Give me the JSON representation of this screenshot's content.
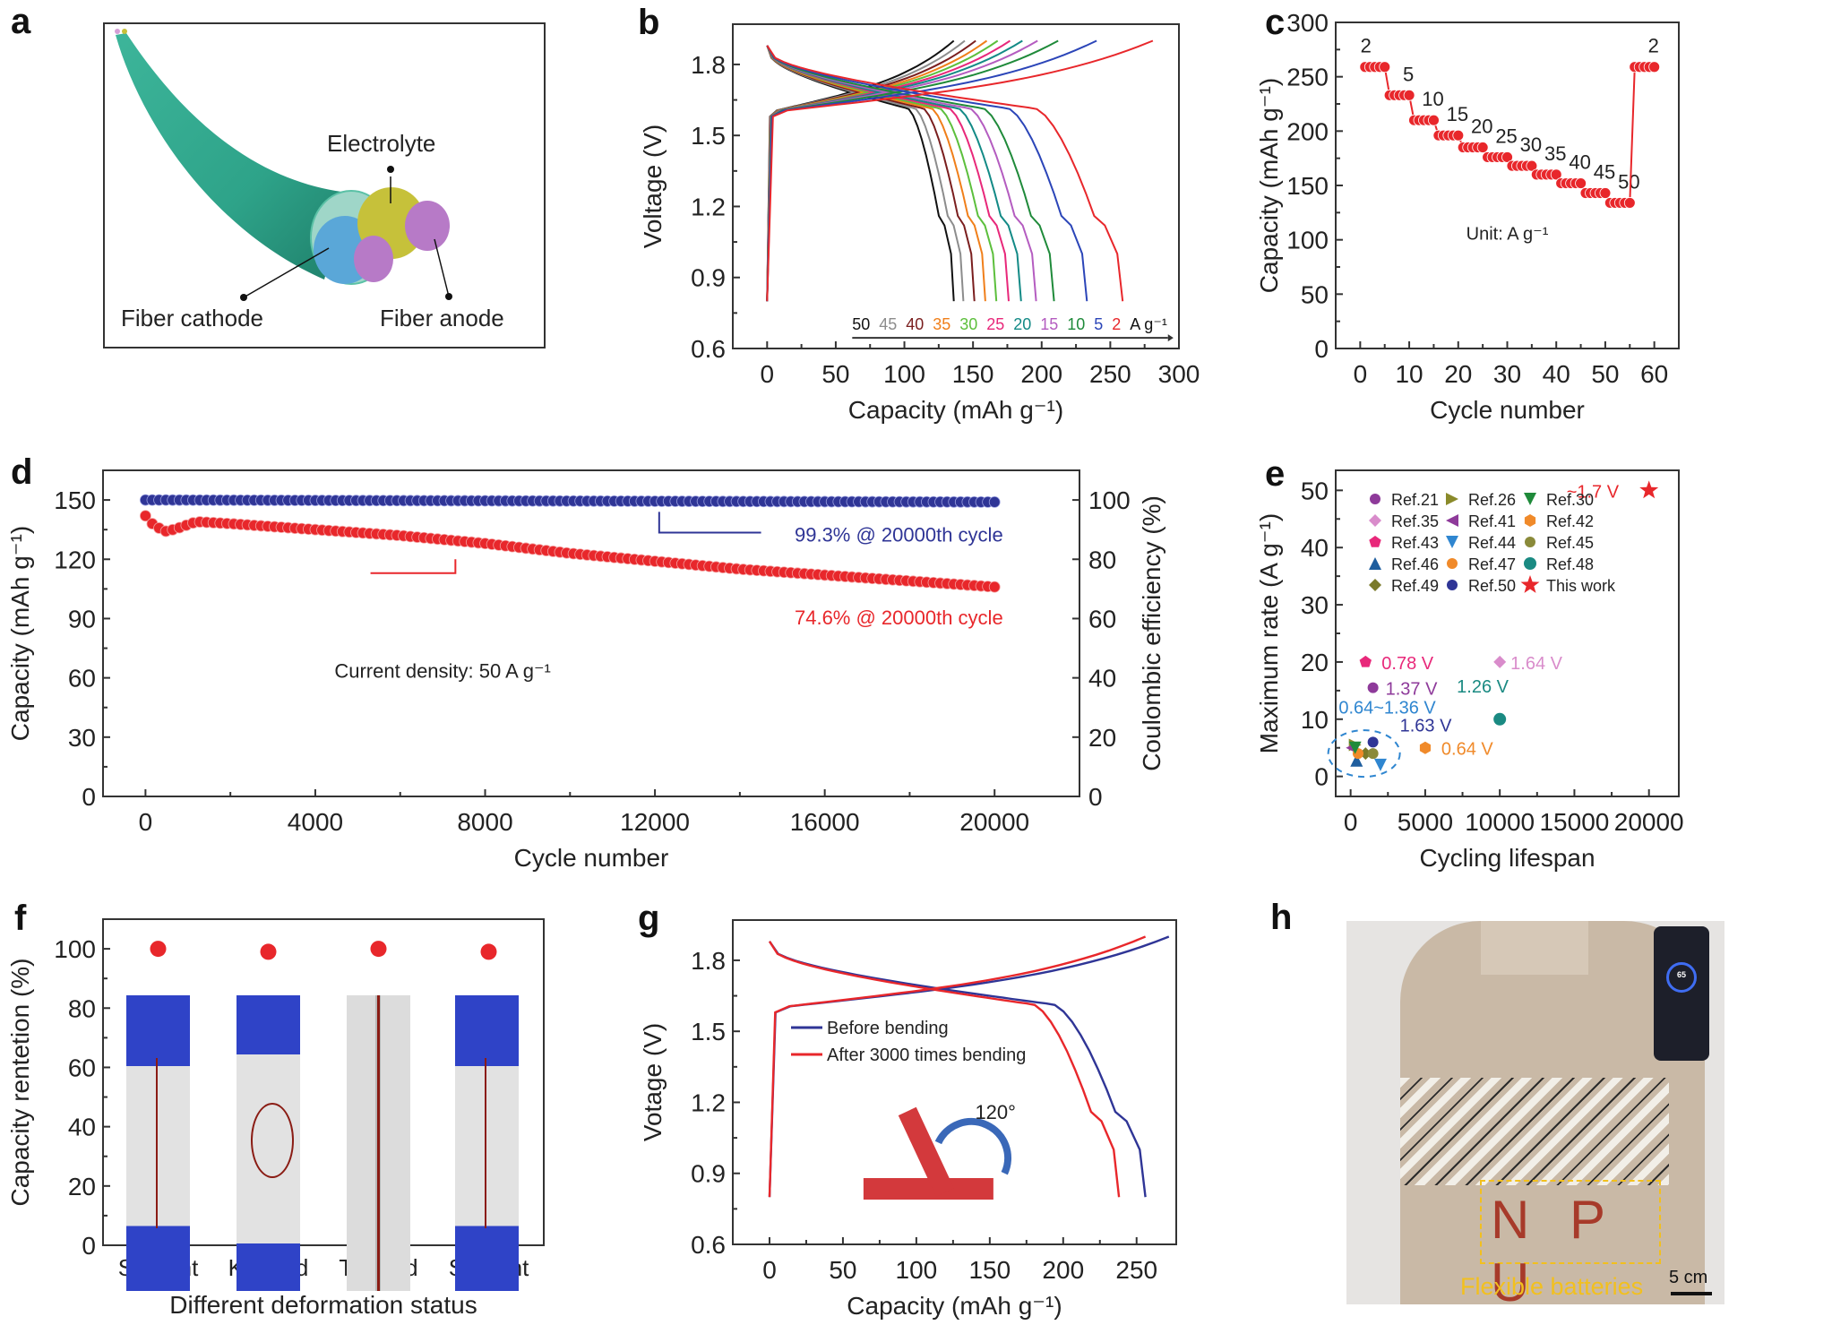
{
  "panels": {
    "a": {
      "letter": "a",
      "labels": {
        "electrolyte": "Electrolyte",
        "cathode": "Fiber cathode",
        "anode": "Fiber anode"
      }
    },
    "h": {
      "letter": "h",
      "labels": {
        "flexible": "Flexible batteries",
        "scale": "5 cm",
        "letters": "N P U",
        "phone_readout": "65"
      }
    }
  },
  "chart_data": [
    {
      "id": "b",
      "letter": "b",
      "type": "line",
      "title": "",
      "xlabel": "Capacity (mAh g⁻¹)",
      "ylabel": "Voltage (V)",
      "xlim": [
        -25,
        300
      ],
      "ylim": [
        0.6,
        1.97
      ],
      "xticks": [
        0,
        50,
        100,
        150,
        200,
        250,
        300
      ],
      "yticks": [
        0.6,
        0.9,
        1.2,
        1.5,
        1.8
      ],
      "annotation_unit": "A g⁻¹",
      "series": [
        {
          "name": "50",
          "color": "#111111",
          "discharge_capacity": 136,
          "charge_capacity": 136
        },
        {
          "name": "45",
          "color": "#8c8c8c",
          "discharge_capacity": 143,
          "charge_capacity": 144
        },
        {
          "name": "40",
          "color": "#7a1e1e",
          "discharge_capacity": 151,
          "charge_capacity": 152
        },
        {
          "name": "35",
          "color": "#f07f1a",
          "discharge_capacity": 159,
          "charge_capacity": 160
        },
        {
          "name": "30",
          "color": "#5cbf3c",
          "discharge_capacity": 167,
          "charge_capacity": 168
        },
        {
          "name": "25",
          "color": "#e8287a",
          "discharge_capacity": 176,
          "charge_capacity": 177
        },
        {
          "name": "20",
          "color": "#138a86",
          "discharge_capacity": 185,
          "charge_capacity": 186
        },
        {
          "name": "15",
          "color": "#b45cc0",
          "discharge_capacity": 196,
          "charge_capacity": 197
        },
        {
          "name": "10",
          "color": "#1f8a3a",
          "discharge_capacity": 209,
          "charge_capacity": 212
        },
        {
          "name": "5",
          "color": "#2b45b8",
          "discharge_capacity": 233,
          "charge_capacity": 240
        },
        {
          "name": "2",
          "color": "#e8272b",
          "discharge_capacity": 259,
          "charge_capacity": 281
        }
      ]
    },
    {
      "id": "c",
      "letter": "c",
      "type": "scatter",
      "xlabel": "Cycle number",
      "ylabel": "Capacity (mAh g⁻¹)",
      "xlim": [
        -5,
        65
      ],
      "ylim": [
        0,
        300
      ],
      "xticks": [
        0,
        10,
        20,
        30,
        40,
        50,
        60
      ],
      "yticks": [
        0,
        50,
        100,
        150,
        200,
        250,
        300
      ],
      "annotation": "Unit: A g⁻¹",
      "color": "#e8272b",
      "steps": [
        {
          "rate": "2",
          "capacity": 259
        },
        {
          "rate": "5",
          "capacity": 233
        },
        {
          "rate": "10",
          "capacity": 210
        },
        {
          "rate": "15",
          "capacity": 196
        },
        {
          "rate": "20",
          "capacity": 185
        },
        {
          "rate": "25",
          "capacity": 176
        },
        {
          "rate": "30",
          "capacity": 168
        },
        {
          "rate": "35",
          "capacity": 160
        },
        {
          "rate": "40",
          "capacity": 152
        },
        {
          "rate": "45",
          "capacity": 143
        },
        {
          "rate": "50",
          "capacity": 134
        },
        {
          "rate": "2",
          "capacity": 259
        }
      ]
    },
    {
      "id": "d",
      "letter": "d",
      "type": "scatter",
      "xlabel": "Cycle number",
      "ylabel": "Capacity (mAh g⁻¹)",
      "y2label": "Coulombic efficiency (%)",
      "xlim": [
        -1000,
        22000
      ],
      "ylim": [
        0,
        165
      ],
      "y2lim": [
        0,
        110
      ],
      "xticks": [
        0,
        4000,
        8000,
        12000,
        16000,
        20000
      ],
      "yticks": [
        0,
        30,
        60,
        90,
        120,
        150
      ],
      "y2ticks": [
        0,
        20,
        40,
        60,
        80,
        100
      ],
      "annotations": {
        "current": "Current density: 50 A g⁻¹",
        "ce": "99.3% @ 20000th cycle",
        "capacity": "74.6% @ 20000th cycle"
      },
      "series": [
        {
          "name": "Capacity",
          "axis": "left",
          "color": "#e8272b",
          "x": [
            0,
            200,
            500,
            800,
            1200,
            2000,
            4000,
            6000,
            8000,
            10000,
            12000,
            14000,
            16000,
            18000,
            20000
          ],
          "y": [
            142,
            137,
            134,
            136,
            139,
            138,
            135,
            132,
            128,
            123,
            119,
            115,
            112,
            109,
            106
          ]
        },
        {
          "name": "Coulombic efficiency",
          "axis": "right",
          "color": "#2f3596",
          "x": [
            0,
            20000
          ],
          "y": [
            100,
            99.3
          ]
        }
      ]
    },
    {
      "id": "e",
      "letter": "e",
      "type": "scatter",
      "xlabel": "Cycling lifespan",
      "ylabel": "Maximum rate (A g⁻¹)",
      "xlim": [
        -1000,
        22000
      ],
      "ylim": [
        -3.5,
        53.5
      ],
      "xticks": [
        0,
        5000,
        10000,
        15000,
        20000
      ],
      "yticks": [
        0,
        10,
        20,
        30,
        40,
        50
      ],
      "legend_position": "top-left",
      "points": [
        {
          "name": "Ref.21",
          "x": 1500,
          "y": 15.5,
          "color": "#8e3a9a",
          "marker": "sphere",
          "label": "1.37 V"
        },
        {
          "name": "Ref.35",
          "x": 10000,
          "y": 20,
          "color": "#d98ccb",
          "marker": "diamond",
          "label": "1.64 V"
        },
        {
          "name": "Ref.43",
          "x": 1000,
          "y": 20,
          "color": "#e8287a",
          "marker": "pentagon",
          "label": "0.78 V"
        },
        {
          "name": "Ref.46",
          "x": 400,
          "y": 2.8,
          "color": "#1f5e9e",
          "marker": "triangle-up",
          "label": ""
        },
        {
          "name": "Ref.49",
          "x": 1000,
          "y": 4,
          "color": "#7a7a2a",
          "marker": "diamond",
          "label": ""
        },
        {
          "name": "Ref.26",
          "x": 300,
          "y": 5.5,
          "color": "#8a8a2a",
          "marker": "triangle-right",
          "label": ""
        },
        {
          "name": "Ref.41",
          "x": 100,
          "y": 5,
          "color": "#8e3a9a",
          "marker": "triangle-left",
          "label": ""
        },
        {
          "name": "Ref.44",
          "x": 2000,
          "y": 2,
          "color": "#2f86d0",
          "marker": "triangle-down",
          "label": ""
        },
        {
          "name": "Ref.47",
          "x": 500,
          "y": 4,
          "color": "#f08a2a",
          "marker": "sphere",
          "label": ""
        },
        {
          "name": "Ref.50",
          "x": 1500,
          "y": 6,
          "color": "#2f3596",
          "marker": "sphere",
          "label": "1.63 V"
        },
        {
          "name": "Ref.30",
          "x": 300,
          "y": 5,
          "color": "#1f8a3a",
          "marker": "triangle-down",
          "label": ""
        },
        {
          "name": "Ref.42",
          "x": 5000,
          "y": 5,
          "color": "#f08a2a",
          "marker": "hexagon",
          "label": "0.64 V"
        },
        {
          "name": "Ref.45",
          "x": 1500,
          "y": 4,
          "color": "#8a8a3a",
          "marker": "sphere",
          "label": ""
        },
        {
          "name": "Ref.48",
          "x": 10000,
          "y": 10,
          "color": "#1a8a82",
          "marker": "circle",
          "label": "1.26 V"
        },
        {
          "name": "This work",
          "x": 20000,
          "y": 50,
          "color": "#e8272b",
          "marker": "star",
          "label": "~1.7 V"
        }
      ],
      "group_annotation": "0.64~1.36 V"
    },
    {
      "id": "f",
      "letter": "f",
      "type": "scatter",
      "xlabel": "Different deformation status",
      "ylabel": "Capacity rentetion (%)",
      "ylim": [
        0,
        110
      ],
      "yticks": [
        0,
        20,
        40,
        60,
        80,
        100
      ],
      "categories": [
        "Straight",
        "Knotted",
        "Twisted",
        "Straight"
      ],
      "values": [
        100,
        99,
        100,
        99
      ],
      "color": "#e8272b"
    },
    {
      "id": "g",
      "letter": "g",
      "type": "line",
      "xlabel": "Capacity (mAh g⁻¹)",
      "ylabel": "Votage (V)",
      "xlim": [
        -25,
        277
      ],
      "ylim": [
        0.6,
        1.97
      ],
      "xticks": [
        0,
        50,
        100,
        150,
        200,
        250
      ],
      "yticks": [
        0.6,
        0.9,
        1.2,
        1.5,
        1.8
      ],
      "inset_label": "120°",
      "legend_position": "center",
      "series": [
        {
          "name": "Before bending",
          "color": "#2f3596",
          "discharge_capacity": 256,
          "charge_capacity": 272
        },
        {
          "name": "After 3000 times bending",
          "color": "#e8272b",
          "discharge_capacity": 238,
          "charge_capacity": 256
        }
      ]
    }
  ]
}
